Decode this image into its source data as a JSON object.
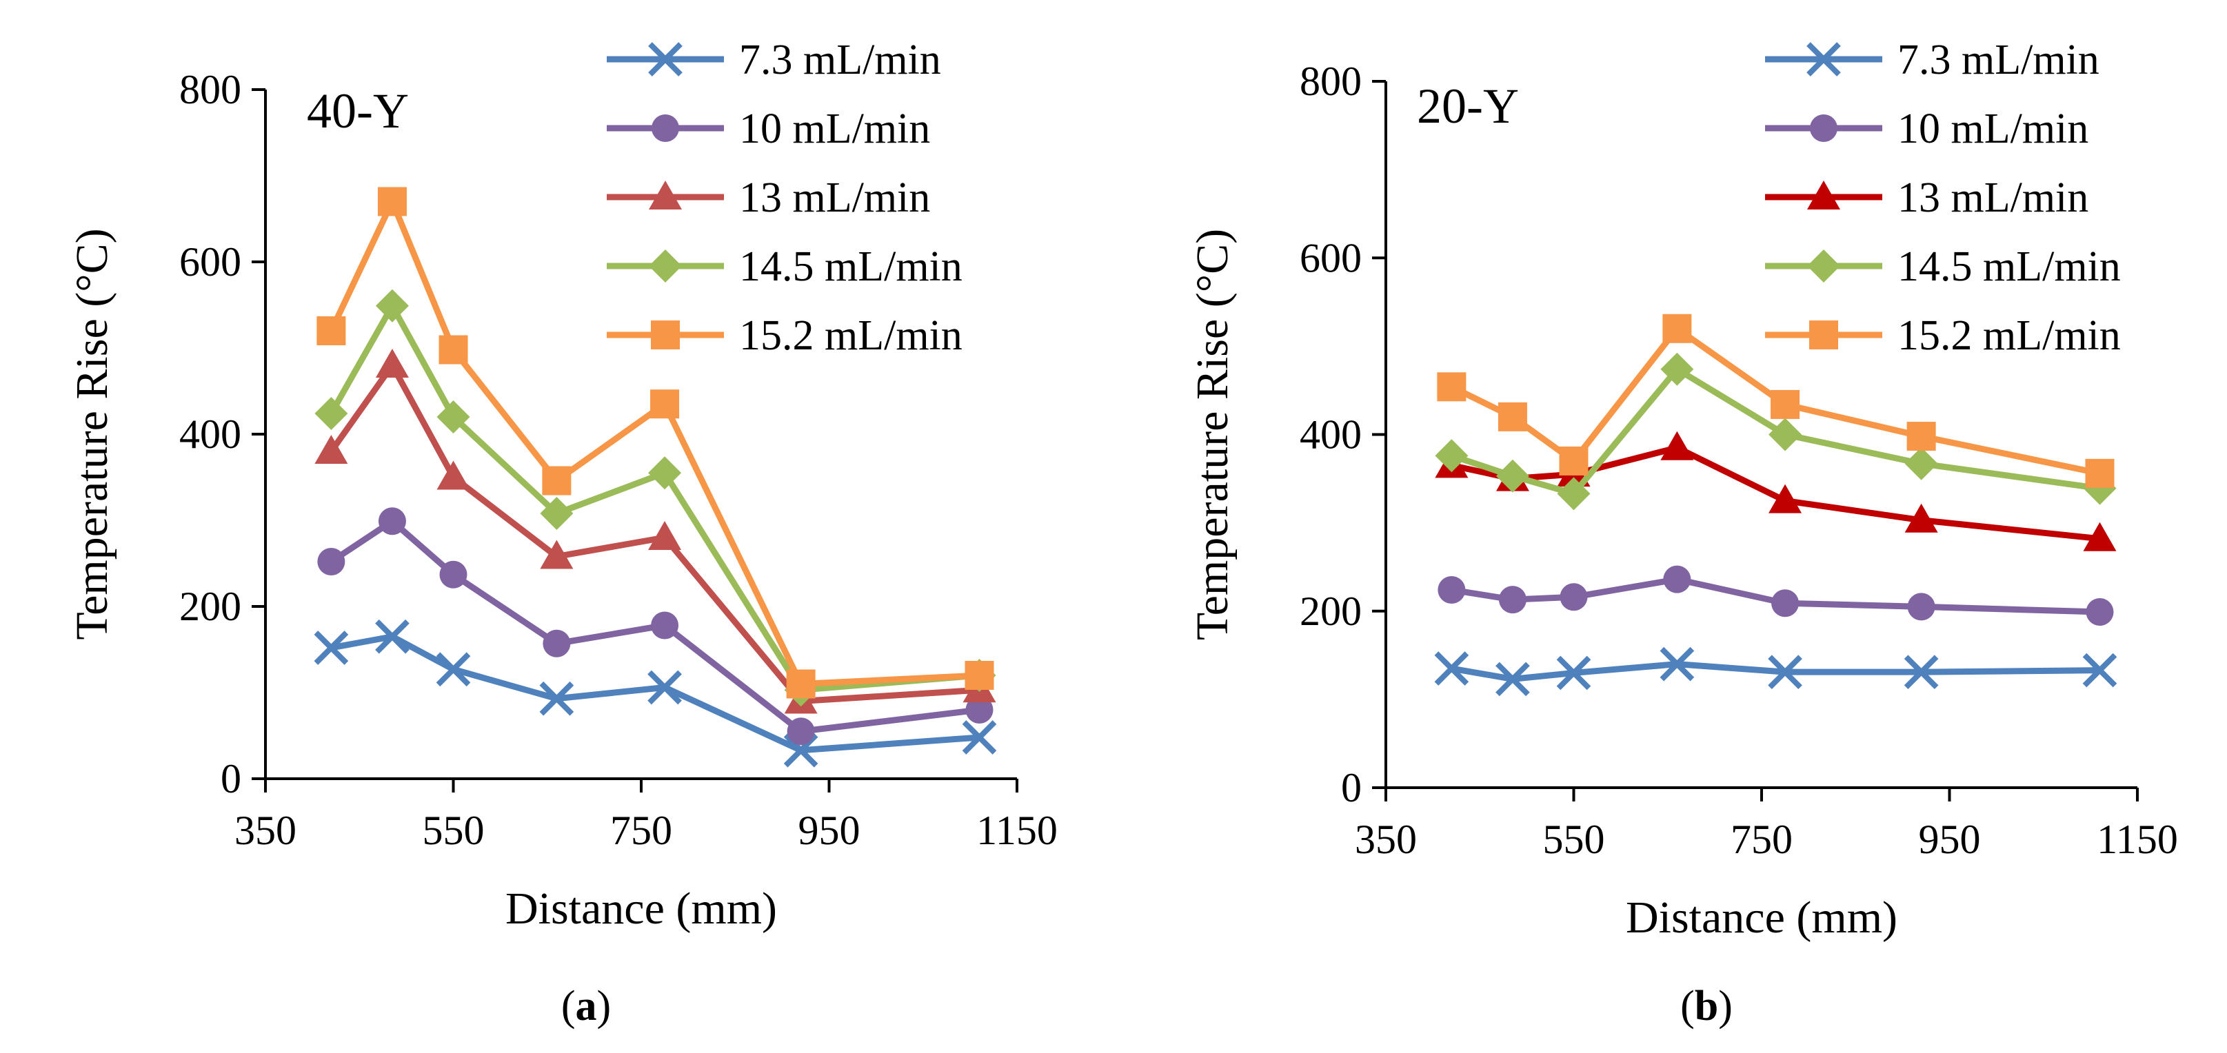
{
  "chart_data": [
    {
      "type": "line",
      "panel_label": "40-Y",
      "caption_letter": "a",
      "xlabel": "Distance (mm)",
      "ylabel": "Temperature Rise (°C)",
      "xlim": [
        350,
        1150
      ],
      "ylim": [
        0,
        800
      ],
      "xticks": [
        350,
        550,
        750,
        950,
        1150
      ],
      "yticks": [
        0,
        200,
        400,
        600,
        800
      ],
      "legend_position": "top-right",
      "x": [
        420,
        485,
        550,
        660,
        775,
        920,
        1110
      ],
      "series": [
        {
          "name": "7.3 mL/min",
          "color": "#4F81BD",
          "marker": "x",
          "values": [
            152,
            165,
            127,
            93,
            106,
            33,
            48
          ]
        },
        {
          "name": "10 mL/min",
          "color": "#8064A2",
          "marker": "circle",
          "values": [
            252,
            299,
            237,
            157,
            178,
            55,
            80
          ]
        },
        {
          "name": "13 mL/min",
          "color": "#C0504D",
          "marker": "triangle",
          "values": [
            380,
            480,
            350,
            258,
            280,
            90,
            103
          ]
        },
        {
          "name": "14.5 mL/min",
          "color": "#9BBB59",
          "marker": "diamond",
          "values": [
            424,
            549,
            420,
            308,
            355,
            103,
            120
          ]
        },
        {
          "name": "15.2 mL/min",
          "color": "#F79646",
          "marker": "square",
          "values": [
            520,
            670,
            498,
            346,
            435,
            110,
            120
          ]
        }
      ]
    },
    {
      "type": "line",
      "panel_label": "20-Y",
      "caption_letter": "b",
      "xlabel": "Distance (mm)",
      "ylabel": "Temperature Rise (°C)",
      "xlim": [
        350,
        1150
      ],
      "ylim": [
        0,
        800
      ],
      "xticks": [
        350,
        550,
        750,
        950,
        1150
      ],
      "yticks": [
        0,
        200,
        400,
        600,
        800
      ],
      "legend_position": "top-right",
      "x": [
        420,
        485,
        550,
        660,
        775,
        920,
        1110
      ],
      "series": [
        {
          "name": "7.3 mL/min",
          "color": "#4F81BD",
          "marker": "x",
          "values": [
            135,
            123,
            130,
            140,
            131,
            131,
            133
          ]
        },
        {
          "name": "10 mL/min",
          "color": "#8064A2",
          "marker": "circle",
          "values": [
            224,
            213,
            216,
            236,
            209,
            205,
            199
          ]
        },
        {
          "name": "13 mL/min",
          "color": "#C00000",
          "marker": "triangle",
          "values": [
            365,
            350,
            355,
            385,
            325,
            303,
            282
          ]
        },
        {
          "name": "14.5 mL/min",
          "color": "#9BBB59",
          "marker": "diamond",
          "values": [
            376,
            353,
            333,
            474,
            400,
            367,
            339
          ]
        },
        {
          "name": "15.2 mL/min",
          "color": "#F79646",
          "marker": "square",
          "values": [
            454,
            420,
            370,
            520,
            434,
            398,
            356
          ]
        }
      ]
    }
  ]
}
